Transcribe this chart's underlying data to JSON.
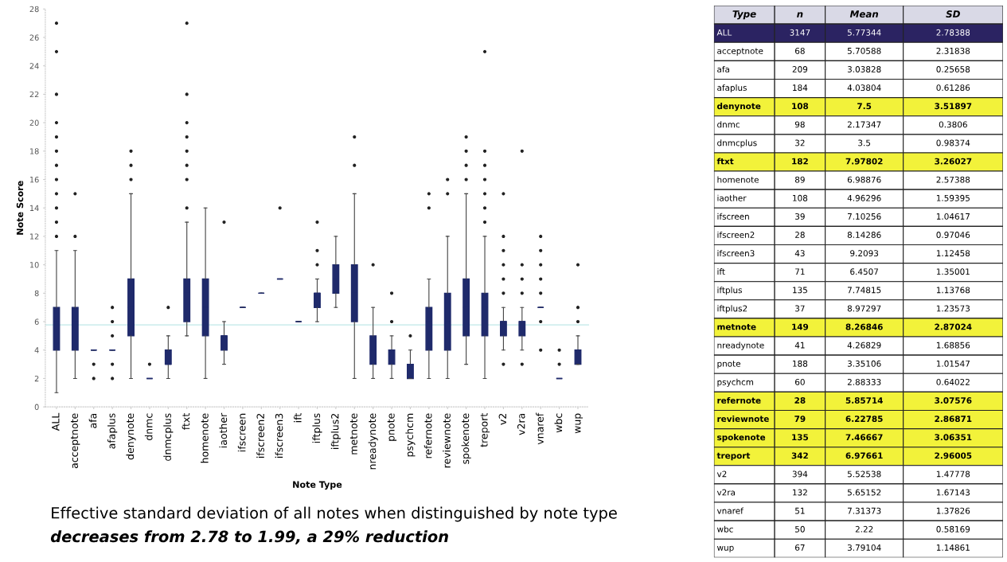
{
  "chart_data": [
    {
      "type": "box",
      "xlabel": "Note Type",
      "ylabel": "Note Score",
      "categories": [
        "ALL",
        "acceptnote",
        "afa",
        "afaplus",
        "denynote",
        "dnmc",
        "dnmcplus",
        "ftxt",
        "homenote",
        "iaother",
        "ifscreen",
        "ifscreen2",
        "ifscreen3",
        "ift",
        "iftplus",
        "iftplus2",
        "metnote",
        "nreadynote",
        "pnote",
        "psychcm",
        "refernote",
        "reviewnote",
        "spokenote",
        "treport",
        "v2",
        "v2ra",
        "vnaref",
        "wbc",
        "wup"
      ],
      "series": [
        {
          "color": "#1f2a6b",
          "boxes": [
            {
              "low": 1,
              "q1": 4,
              "median": 6,
              "q3": 7,
              "high": 11,
              "outliers": [
                12,
                13,
                14,
                15,
                16,
                17,
                18,
                19,
                20,
                22,
                25,
                27
              ]
            },
            {
              "low": 2,
              "q1": 4,
              "median": 6,
              "q3": 7,
              "high": 11,
              "outliers": [
                12,
                15
              ]
            },
            {
              "low": 4,
              "q1": 4,
              "median": 4,
              "q3": 4,
              "high": 4,
              "outliers": [
                2,
                3
              ]
            },
            {
              "low": 4,
              "q1": 4,
              "median": 4,
              "q3": 4,
              "high": 4,
              "outliers": [
                2,
                3,
                5,
                6,
                7
              ]
            },
            {
              "low": 2,
              "q1": 5,
              "median": 7,
              "q3": 9,
              "high": 15,
              "outliers": [
                16,
                17,
                18
              ]
            },
            {
              "low": 2,
              "q1": 2,
              "median": 2,
              "q3": 2,
              "high": 2,
              "outliers": [
                3
              ]
            },
            {
              "low": 2,
              "q1": 3,
              "median": 3,
              "q3": 4,
              "high": 5,
              "outliers": [
                7
              ]
            },
            {
              "low": 5,
              "q1": 6,
              "median": 8,
              "q3": 9,
              "high": 13,
              "outliers": [
                14,
                16,
                17,
                18,
                19,
                20,
                22,
                27
              ]
            },
            {
              "low": 2,
              "q1": 5,
              "median": 7,
              "q3": 9,
              "high": 14
            },
            {
              "low": 3,
              "q1": 4,
              "median": 5,
              "q3": 5,
              "high": 6,
              "outliers": [
                13
              ]
            },
            {
              "low": 7,
              "q1": 7,
              "median": 7,
              "q3": 7,
              "high": 7
            },
            {
              "low": 8,
              "q1": 8,
              "median": 8,
              "q3": 8,
              "high": 8
            },
            {
              "low": 9,
              "q1": 9,
              "median": 9,
              "q3": 9,
              "high": 9,
              "outliers": [
                14
              ]
            },
            {
              "low": 6,
              "q1": 6,
              "median": 6,
              "q3": 6,
              "high": 6
            },
            {
              "low": 6,
              "q1": 7,
              "median": 8,
              "q3": 8,
              "high": 9,
              "outliers": [
                10,
                11,
                13
              ]
            },
            {
              "low": 7,
              "q1": 8,
              "median": 9,
              "q3": 10,
              "high": 12
            },
            {
              "low": 2,
              "q1": 6,
              "median": 8,
              "q3": 10,
              "high": 15,
              "outliers": [
                17,
                19
              ]
            },
            {
              "low": 2,
              "q1": 3,
              "median": 4,
              "q3": 5,
              "high": 7,
              "outliers": [
                10
              ]
            },
            {
              "low": 2,
              "q1": 3,
              "median": 4,
              "q3": 4,
              "high": 5,
              "outliers": [
                6,
                8
              ]
            },
            {
              "low": 2,
              "q1": 2,
              "median": 3,
              "q3": 3,
              "high": 4,
              "outliers": [
                5
              ]
            },
            {
              "low": 2,
              "q1": 4,
              "median": 6,
              "q3": 7,
              "high": 9,
              "outliers": [
                14,
                15
              ]
            },
            {
              "low": 2,
              "q1": 4,
              "median": 6,
              "q3": 8,
              "high": 12,
              "outliers": [
                15,
                16
              ]
            },
            {
              "low": 3,
              "q1": 5,
              "median": 7,
              "q3": 9,
              "high": 15,
              "outliers": [
                16,
                17,
                18,
                19
              ]
            },
            {
              "low": 2,
              "q1": 5,
              "median": 7,
              "q3": 8,
              "high": 12,
              "outliers": [
                13,
                14,
                15,
                16,
                17,
                18,
                25
              ]
            },
            {
              "low": 4,
              "q1": 5,
              "median": 6,
              "q3": 6,
              "high": 7,
              "outliers": [
                3,
                8,
                9,
                10,
                11,
                12,
                15
              ]
            },
            {
              "low": 4,
              "q1": 5,
              "median": 6,
              "q3": 6,
              "high": 7,
              "outliers": [
                3,
                8,
                9,
                10,
                18
              ]
            },
            {
              "low": 7,
              "q1": 7,
              "median": 7,
              "q3": 7,
              "high": 7,
              "outliers": [
                4,
                6,
                8,
                9,
                10,
                11,
                12
              ]
            },
            {
              "low": 2,
              "q1": 2,
              "median": 2,
              "q3": 2,
              "high": 2,
              "outliers": [
                3,
                4
              ]
            },
            {
              "low": 3,
              "q1": 3,
              "median": 4,
              "q3": 4,
              "high": 5,
              "outliers": [
                6,
                7,
                10
              ]
            }
          ]
        }
      ],
      "ylim": [
        0,
        28
      ],
      "yticks": [
        0,
        2,
        4,
        6,
        8,
        10,
        12,
        14,
        16,
        18,
        20,
        22,
        24,
        26,
        28
      ],
      "grid": false,
      "ref_lines": [
        {
          "axis": "y",
          "value": 5.77344,
          "color": "#bfe8e8"
        }
      ],
      "annotations": [
        "Effective standard deviation of all notes when distinguished by note type",
        "decreases from 2.78 to 1.99, a 29% reduction"
      ]
    },
    {
      "type": "other",
      "xlabel": "Type",
      "data_labels": true,
      "categories": [
        "ALL",
        "acceptnote",
        "afa",
        "afaplus",
        "denynote",
        "dnmc",
        "dnmcplus",
        "ftxt",
        "homenote",
        "iaother",
        "ifscreen",
        "ifscreen2",
        "ifscreen3",
        "ift",
        "iftplus",
        "iftplus2",
        "metnote",
        "nreadynote",
        "pnote",
        "psychcm",
        "refernote",
        "reviewnote",
        "spokenote",
        "treport",
        "v2",
        "v2ra",
        "vnaref",
        "wbc",
        "wup"
      ],
      "colors": [
        "#2b2362",
        "#ffffff",
        "#ffffff",
        "#ffffff",
        "#f2f23a",
        "#ffffff",
        "#ffffff",
        "#f2f23a",
        "#ffffff",
        "#ffffff",
        "#ffffff",
        "#ffffff",
        "#ffffff",
        "#ffffff",
        "#ffffff",
        "#ffffff",
        "#f2f23a",
        "#ffffff",
        "#ffffff",
        "#ffffff",
        "#f2f23a",
        "#f2f23a",
        "#f2f23a",
        "#f2f23a",
        "#ffffff",
        "#ffffff",
        "#ffffff",
        "#ffffff",
        "#ffffff"
      ],
      "series": [
        {
          "name": "n",
          "colors": [
            "#2b2362",
            "#ffffff",
            "#ffffff",
            "#ffffff",
            "#f2f23a",
            "#ffffff",
            "#ffffff",
            "#f2f23a",
            "#ffffff",
            "#ffffff",
            "#ffffff",
            "#ffffff",
            "#ffffff",
            "#ffffff",
            "#ffffff",
            "#ffffff",
            "#f2f23a",
            "#ffffff",
            "#ffffff",
            "#ffffff",
            "#f2f23a",
            "#f2f23a",
            "#f2f23a",
            "#f2f23a",
            "#ffffff",
            "#ffffff",
            "#ffffff",
            "#ffffff",
            "#ffffff"
          ],
          "values": [
            3147,
            68,
            209,
            184,
            108,
            98,
            32,
            182,
            89,
            108,
            39,
            28,
            43,
            71,
            135,
            37,
            149,
            41,
            188,
            60,
            28,
            79,
            135,
            342,
            394,
            132,
            51,
            50,
            67
          ]
        },
        {
          "name": "Mean",
          "colors": [
            "#2b2362",
            "#ffffff",
            "#ffffff",
            "#ffffff",
            "#f2f23a",
            "#ffffff",
            "#ffffff",
            "#f2f23a",
            "#ffffff",
            "#ffffff",
            "#ffffff",
            "#ffffff",
            "#ffffff",
            "#ffffff",
            "#ffffff",
            "#ffffff",
            "#f2f23a",
            "#ffffff",
            "#ffffff",
            "#ffffff",
            "#f2f23a",
            "#f2f23a",
            "#f2f23a",
            "#f2f23a",
            "#ffffff",
            "#ffffff",
            "#ffffff",
            "#ffffff",
            "#ffffff"
          ],
          "values": [
            5.77344,
            5.70588,
            3.03828,
            4.03804,
            7.5,
            2.17347,
            3.5,
            7.97802,
            6.98876,
            4.96296,
            7.10256,
            8.14286,
            9.2093,
            6.4507,
            7.74815,
            8.97297,
            8.26846,
            4.26829,
            3.35106,
            2.88333,
            5.85714,
            6.22785,
            7.46667,
            6.97661,
            5.52538,
            5.65152,
            7.31373,
            2.22,
            3.79104
          ]
        },
        {
          "name": "SD",
          "colors": [
            "#2b2362",
            "#ffffff",
            "#ffffff",
            "#ffffff",
            "#f2f23a",
            "#ffffff",
            "#ffffff",
            "#f2f23a",
            "#ffffff",
            "#ffffff",
            "#ffffff",
            "#ffffff",
            "#ffffff",
            "#ffffff",
            "#ffffff",
            "#ffffff",
            "#f2f23a",
            "#ffffff",
            "#ffffff",
            "#ffffff",
            "#f2f23a",
            "#f2f23a",
            "#f2f23a",
            "#f2f23a",
            "#ffffff",
            "#ffffff",
            "#ffffff",
            "#ffffff",
            "#ffffff"
          ],
          "values": [
            2.78388,
            2.31838,
            0.25658,
            0.61286,
            3.51897,
            0.3806,
            0.98374,
            3.26027,
            2.57388,
            1.59395,
            1.04617,
            0.97046,
            1.12458,
            1.35001,
            1.13768,
            1.23573,
            2.87024,
            1.68856,
            1.01547,
            0.64022,
            3.07576,
            2.86871,
            3.06351,
            2.96005,
            1.47778,
            1.67143,
            1.37826,
            0.58169,
            1.14861
          ]
        }
      ]
    }
  ]
}
